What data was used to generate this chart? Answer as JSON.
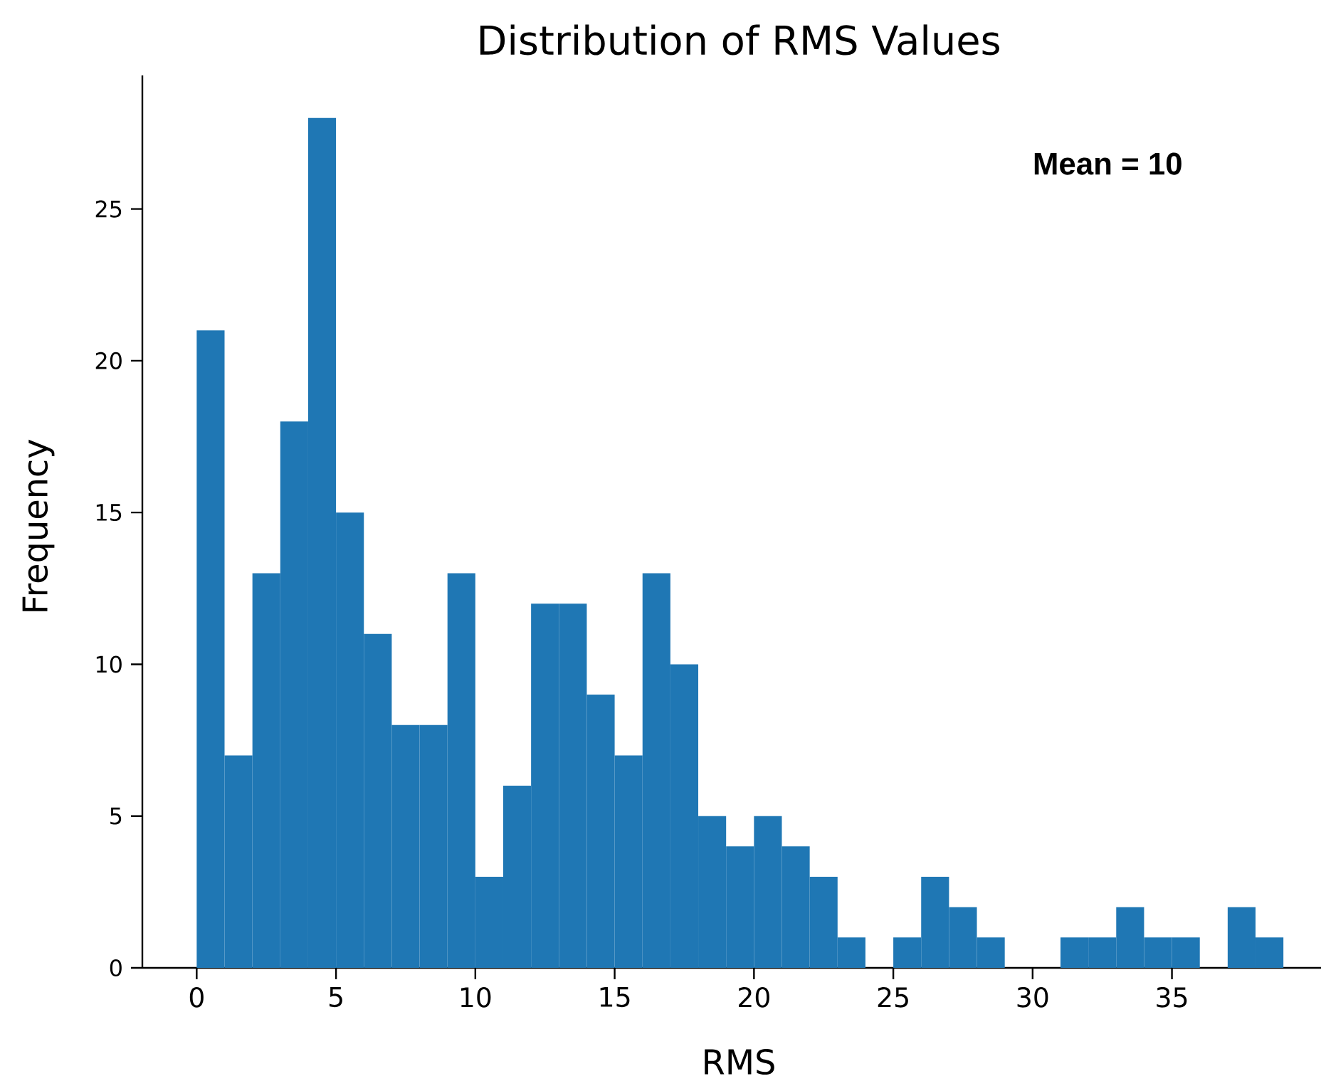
{
  "chart_data": {
    "type": "histogram",
    "title": "Distribution of RMS Values",
    "xlabel": "RMS",
    "ylabel": "Frequency",
    "bins": [
      0,
      1,
      2,
      3,
      4,
      5,
      6,
      7,
      8,
      9,
      10,
      11,
      12,
      13,
      14,
      15,
      16,
      17,
      18,
      19,
      20,
      21,
      22,
      23,
      24,
      25,
      26,
      27,
      28,
      29,
      30,
      31,
      32,
      33,
      34,
      35,
      36,
      37,
      38,
      39
    ],
    "values": [
      21,
      7,
      13,
      18,
      28,
      15,
      11,
      8,
      8,
      13,
      3,
      6,
      12,
      12,
      9,
      7,
      13,
      10,
      5,
      4,
      5,
      4,
      3,
      1,
      0,
      1,
      3,
      2,
      1,
      0,
      0,
      1,
      1,
      2,
      1,
      1,
      0,
      2,
      1
    ],
    "color": "#1f77b4",
    "xlim": [
      -1.95,
      40.35
    ],
    "ylim": [
      0,
      29.4
    ],
    "xticks": [
      0,
      5,
      10,
      15,
      20,
      25,
      30,
      35
    ],
    "yticks": [
      0,
      5,
      10,
      15,
      20,
      25
    ],
    "annotations": [
      "**Mean = 10**"
    ]
  }
}
